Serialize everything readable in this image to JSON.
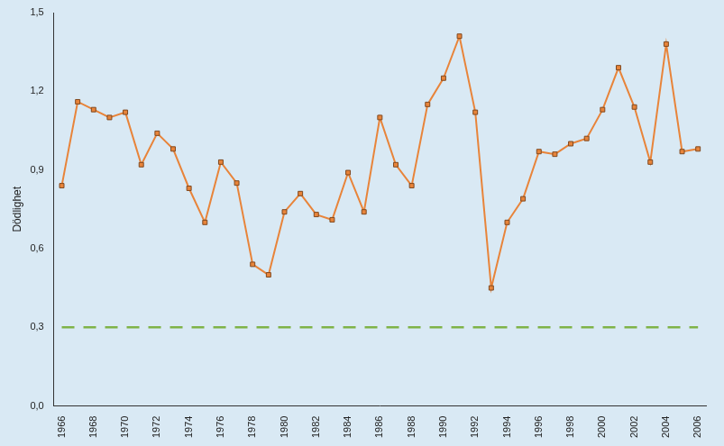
{
  "chart_data": {
    "type": "line",
    "y_label": "Dödlighet",
    "categories": [
      "1966",
      null,
      "1968",
      null,
      "1970",
      null,
      "1972",
      null,
      "1974",
      null,
      "1976",
      null,
      "1978",
      null,
      "1980",
      null,
      "1982",
      null,
      "1984",
      null,
      "1986",
      null,
      "1988",
      null,
      "1990",
      null,
      "1992",
      null,
      "1994",
      null,
      "1996",
      null,
      "1998",
      null,
      "2000",
      null,
      "2002",
      null,
      "2004",
      null,
      "2006"
    ],
    "series": [
      {
        "color": "#e8843a",
        "marker": "square",
        "line_style": "solid",
        "values": [
          0.84,
          1.16,
          1.13,
          1.1,
          1.12,
          0.92,
          1.04,
          0.98,
          0.83,
          0.7,
          0.93,
          0.85,
          0.54,
          0.5,
          0.74,
          0.81,
          0.73,
          0.71,
          0.89,
          0.74,
          1.1,
          0.92,
          0.84,
          1.15,
          1.25,
          1.41,
          1.12,
          0.45,
          0.7,
          0.79,
          0.97,
          0.96,
          1.0,
          1.02,
          1.13,
          1.29,
          1.14,
          0.93,
          1.38,
          0.97,
          0.98
        ]
      },
      {
        "color": "#7fb348",
        "marker": "none",
        "line_style": "dashed",
        "values": [
          0.3,
          0.3,
          0.3,
          0.3,
          0.3,
          0.3,
          0.3,
          0.3,
          0.3,
          0.3,
          0.3,
          0.3,
          0.3,
          0.3,
          0.3,
          0.3,
          0.3,
          0.3,
          0.3,
          0.3,
          0.3,
          0.3,
          0.3,
          0.3,
          0.3,
          0.3,
          0.3,
          0.3,
          0.3,
          0.3,
          0.3,
          0.3,
          0.3,
          0.3,
          0.3,
          0.3,
          0.3,
          0.3,
          0.3,
          0.3,
          0.3
        ]
      }
    ],
    "ylim": [
      0,
      1.5
    ],
    "yticks": [
      {
        "value": 0,
        "label": "0,0"
      },
      {
        "value": 0.3,
        "label": "0,3"
      },
      {
        "value": 0.6,
        "label": "0,6"
      },
      {
        "value": 0.9,
        "label": "0,9"
      },
      {
        "value": 1.2,
        "label": "1,2"
      },
      {
        "value": 1.5,
        "label": "1,5"
      }
    ],
    "grid": false
  }
}
